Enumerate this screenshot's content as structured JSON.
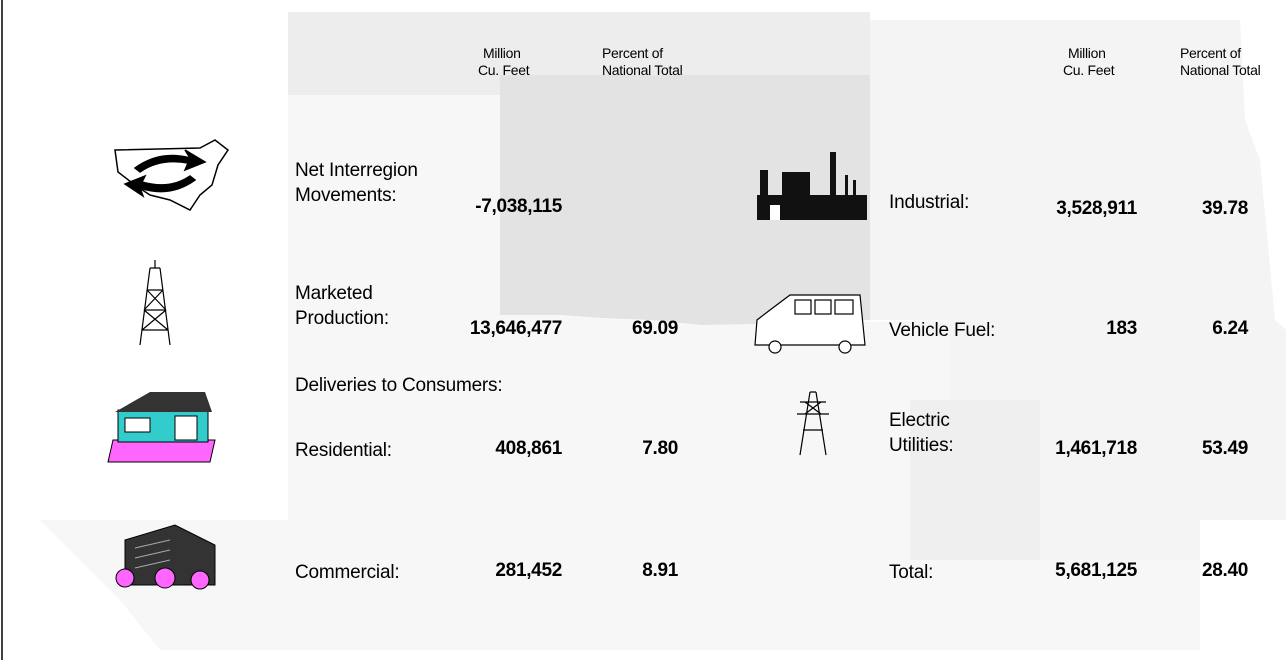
{
  "left_headers": {
    "volume": [
      "Million",
      "Cu. Feet"
    ],
    "percent": [
      "Percent of",
      "National Total"
    ]
  },
  "right_headers": {
    "volume": [
      "Million",
      "Cu. Feet"
    ],
    "percent": [
      "Percent of",
      "National Total"
    ]
  },
  "left_rows": [
    {
      "label": [
        "Net Interregion",
        "Movements:"
      ],
      "volume": "-7,038,115"
    },
    {
      "label": [
        "Marketed",
        "Production:"
      ],
      "volume": "13,646,477",
      "percent": "69.09"
    },
    {
      "label": [
        "Residential:"
      ],
      "volume": "408,861",
      "percent": "7.80"
    },
    {
      "label": [
        "Commercial:"
      ],
      "volume": "281,452",
      "percent": "8.91"
    }
  ],
  "section_label": "Deliveries to Consumers:",
  "right_rows": [
    {
      "label": [
        "Industrial:"
      ],
      "volume": "3,528,911",
      "percent": "39.78"
    },
    {
      "label": [
        "Vehicle Fuel:"
      ],
      "volume": "183",
      "percent": "6.24"
    },
    {
      "label": [
        "Electric",
        "Utilities:"
      ],
      "volume": "1,461,718",
      "percent": "53.49"
    },
    {
      "label": [
        "Total:"
      ],
      "volume": "5,681,125",
      "percent": "28.40"
    }
  ]
}
